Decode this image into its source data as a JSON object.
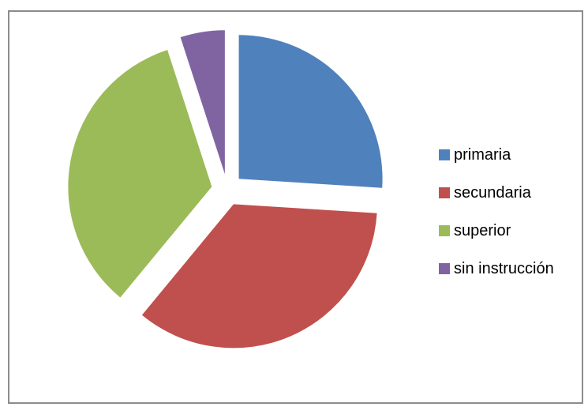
{
  "chart_data": {
    "type": "pie",
    "title": "",
    "categories": [
      "primaria",
      "secundaria",
      "superior",
      "sin instrucción"
    ],
    "values": [
      26,
      35,
      34,
      5
    ],
    "colors": [
      "#4F81BD",
      "#C0504D",
      "#9BBB59",
      "#8064A2"
    ],
    "exploded": true,
    "legend_position": "right"
  }
}
